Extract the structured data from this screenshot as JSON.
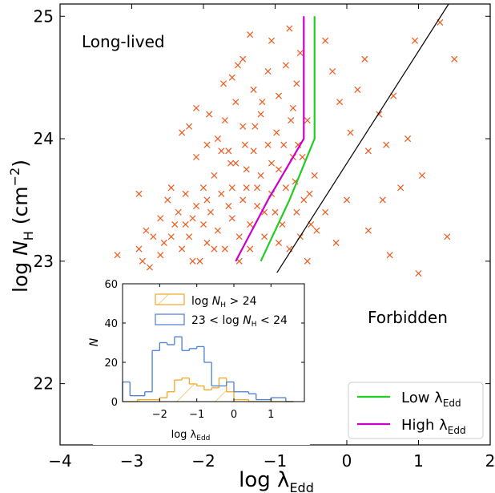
{
  "chart_data": [
    {
      "type": "scatter",
      "xlabel": "log λ",
      "xlabel_sub": "Edd",
      "ylabel_pre": "log ",
      "ylabel_var": "N",
      "ylabel_sub": "H",
      "ylabel_unit": " (cm",
      "ylabel_sup": "−2",
      "ylabel_close": ")",
      "xlim": [
        -4,
        2
      ],
      "ylim": [
        21.5,
        25.1
      ],
      "xticks": [
        -4,
        -3,
        -2,
        -1,
        0,
        1,
        2
      ],
      "xtick_labels": [
        "−4",
        "−3",
        "−2",
        "−1",
        "0",
        "1",
        "2"
      ],
      "yticks": [
        22,
        23,
        24,
        25
      ],
      "ytick_labels": [
        "22",
        "23",
        "24",
        "25"
      ],
      "region_labels": {
        "long_lived": "Long-lived",
        "forbidden": "Forbidden"
      },
      "colors": {
        "points": "#f0581a",
        "low": "#22cc22",
        "high": "#cc00cc",
        "boundary": "#000000"
      },
      "boundary_line": {
        "x": [
          -1.2,
          1.42
        ],
        "y": [
          22.7,
          25.1
        ]
      },
      "series": [
        {
          "name_main": "Low λ",
          "name_sub": "Edd",
          "x": [
            -1.2,
            -0.8,
            -0.45,
            -0.45
          ],
          "y": [
            23.0,
            23.5,
            24.0,
            25.0
          ]
        },
        {
          "name_main": "High λ",
          "name_sub": "Edd",
          "x": [
            -1.55,
            -1.1,
            -0.6,
            -0.6
          ],
          "y": [
            23.0,
            23.5,
            24.0,
            25.0
          ]
        }
      ],
      "points": [
        [
          -3.2,
          23.05
        ],
        [
          -2.9,
          23.1
        ],
        [
          -2.85,
          23.0
        ],
        [
          -2.8,
          23.25
        ],
        [
          -2.75,
          22.95
        ],
        [
          -2.7,
          23.2
        ],
        [
          -2.6,
          23.35
        ],
        [
          -2.55,
          23.15
        ],
        [
          -2.5,
          23.5
        ],
        [
          -2.45,
          23.2
        ],
        [
          -2.4,
          23.3
        ],
        [
          -2.35,
          23.4
        ],
        [
          -2.3,
          23.1
        ],
        [
          -2.25,
          23.55
        ],
        [
          -2.2,
          23.2
        ],
        [
          -2.15,
          23.35
        ],
        [
          -2.1,
          23.45
        ],
        [
          -2.05,
          23.0
        ],
        [
          -2.0,
          23.6
        ],
        [
          -2.0,
          23.3
        ],
        [
          -1.95,
          23.15
        ],
        [
          -1.9,
          23.4
        ],
        [
          -1.85,
          23.7
        ],
        [
          -1.8,
          23.25
        ],
        [
          -1.75,
          23.55
        ],
        [
          -1.7,
          23.1
        ],
        [
          -1.65,
          23.45
        ],
        [
          -1.6,
          23.35
        ],
        [
          -1.55,
          23.8
        ],
        [
          -1.5,
          23.2
        ],
        [
          -1.45,
          23.5
        ],
        [
          -1.4,
          23.6
        ],
        [
          -1.35,
          23.3
        ],
        [
          -1.3,
          23.9
        ],
        [
          -1.25,
          23.45
        ],
        [
          -1.2,
          23.7
        ],
        [
          -1.15,
          23.2
        ],
        [
          -1.1,
          23.95
        ],
        [
          -1.05,
          23.55
        ],
        [
          -1.0,
          23.4
        ],
        [
          -0.95,
          23.75
        ],
        [
          -0.9,
          23.3
        ],
        [
          -0.85,
          23.6
        ],
        [
          -0.8,
          23.1
        ],
        [
          -0.75,
          23.85
        ],
        [
          -0.7,
          23.4
        ],
        [
          -0.65,
          23.2
        ],
        [
          -0.6,
          23.5
        ],
        [
          -0.55,
          23.0
        ],
        [
          -0.5,
          23.3
        ],
        [
          -2.3,
          24.05
        ],
        [
          -2.1,
          23.85
        ],
        [
          -1.95,
          23.95
        ],
        [
          -1.7,
          24.15
        ],
        [
          -1.55,
          24.3
        ],
        [
          -1.45,
          24.1
        ],
        [
          -1.3,
          24.4
        ],
        [
          -1.2,
          24.2
        ],
        [
          -1.1,
          24.55
        ],
        [
          -1.05,
          24.8
        ],
        [
          -0.95,
          24.35
        ],
        [
          -0.85,
          24.6
        ],
        [
          -0.8,
          24.9
        ],
        [
          -0.75,
          24.25
        ],
        [
          -0.7,
          24.45
        ],
        [
          -0.65,
          24.7
        ],
        [
          -0.55,
          24.15
        ],
        [
          -1.35,
          24.85
        ],
        [
          -1.45,
          24.65
        ],
        [
          -1.6,
          24.5
        ],
        [
          -1.65,
          23.9
        ],
        [
          -1.8,
          24.0
        ],
        [
          -2.1,
          24.25
        ],
        [
          -2.2,
          24.1
        ],
        [
          -0.3,
          24.8
        ],
        [
          -0.2,
          24.55
        ],
        [
          -0.1,
          24.3
        ],
        [
          0.05,
          24.05
        ],
        [
          0.15,
          24.4
        ],
        [
          0.25,
          24.65
        ],
        [
          0.3,
          23.9
        ],
        [
          0.45,
          24.2
        ],
        [
          0.5,
          23.5
        ],
        [
          0.55,
          23.95
        ],
        [
          0.65,
          24.35
        ],
        [
          0.75,
          23.6
        ],
        [
          0.85,
          24.0
        ],
        [
          0.95,
          24.8
        ],
        [
          1.05,
          23.7
        ],
        [
          1.3,
          24.95
        ],
        [
          1.5,
          24.65
        ],
        [
          1.4,
          23.2
        ],
        [
          1.0,
          22.9
        ],
        [
          0.6,
          23.05
        ],
        [
          0.3,
          23.25
        ],
        [
          0.0,
          23.5
        ],
        [
          -0.15,
          23.15
        ],
        [
          -0.3,
          23.4
        ],
        [
          -0.45,
          23.7
        ],
        [
          -2.9,
          23.55
        ],
        [
          -2.6,
          23.05
        ],
        [
          -2.45,
          23.6
        ],
        [
          -2.25,
          23.3
        ],
        [
          -2.15,
          23.0
        ],
        [
          -1.95,
          23.5
        ],
        [
          -1.85,
          23.1
        ],
        [
          -1.75,
          23.9
        ],
        [
          -1.6,
          23.6
        ],
        [
          -1.5,
          23.0
        ],
        [
          -1.4,
          23.75
        ],
        [
          -1.35,
          23.1
        ],
        [
          -1.25,
          23.6
        ],
        [
          -1.15,
          23.4
        ],
        [
          -1.05,
          23.8
        ],
        [
          -0.95,
          23.15
        ],
        [
          -0.88,
          23.95
        ],
        [
          -0.72,
          23.65
        ],
        [
          -0.62,
          23.85
        ],
        [
          -0.52,
          23.55
        ],
        [
          -0.42,
          23.25
        ],
        [
          -1.92,
          24.2
        ],
        [
          -1.72,
          24.45
        ],
        [
          -1.52,
          24.6
        ],
        [
          -1.28,
          24.1
        ],
        [
          -1.18,
          24.3
        ],
        [
          -0.98,
          24.05
        ],
        [
          -0.78,
          24.15
        ],
        [
          -0.68,
          23.95
        ],
        [
          -1.42,
          23.95
        ],
        [
          -1.62,
          23.8
        ]
      ]
    },
    {
      "type": "histogram",
      "xlabel": "log λ",
      "xlabel_sub": "Edd",
      "ylabel": "N",
      "xlim": [
        -3.0,
        1.9
      ],
      "ylim": [
        0,
        60
      ],
      "xticks": [
        -2,
        -1,
        0,
        1
      ],
      "xtick_labels": [
        "−2",
        "−1",
        "0",
        "1"
      ],
      "yticks": [
        0,
        20,
        40,
        60
      ],
      "ytick_labels": [
        "0",
        "20",
        "40",
        "60"
      ],
      "bins": [
        -3.0,
        -2.8,
        -2.6,
        -2.4,
        -2.2,
        -2.0,
        -1.8,
        -1.6,
        -1.4,
        -1.2,
        -1.0,
        -0.8,
        -0.6,
        -0.4,
        -0.2,
        0.0,
        0.2,
        0.4,
        0.6,
        0.8,
        1.0,
        1.2,
        1.4,
        1.6
      ],
      "colors": {
        "high_nh": "#f5a623",
        "mid_nh": "#4a7fd4"
      },
      "legend_label_pre": "log ",
      "legend_N": "N",
      "legend_sub": "H",
      "series": [
        {
          "name_suffix": " > 24",
          "counts": [
            0,
            0,
            1,
            1,
            1,
            2,
            5,
            11,
            12,
            9,
            8,
            6,
            7,
            12,
            5,
            1,
            1,
            0,
            0,
            0,
            0,
            0,
            0
          ]
        },
        {
          "name_prefix": "23 < ",
          "name_suffix": " < 24",
          "counts": [
            10,
            3,
            3,
            5,
            26,
            30,
            29,
            33,
            26,
            27,
            28,
            20,
            8,
            8,
            10,
            5,
            5,
            4,
            1,
            1,
            2,
            2,
            0
          ]
        }
      ]
    }
  ]
}
